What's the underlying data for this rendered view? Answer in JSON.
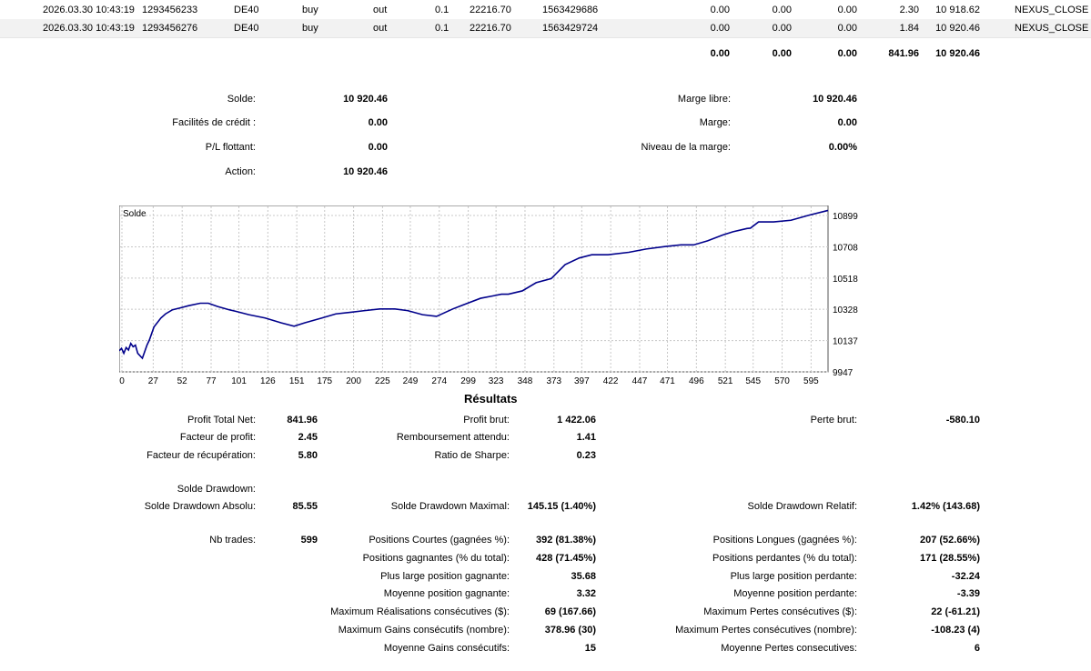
{
  "deals": [
    {
      "time": "2026.03.30 10:43:19",
      "order": "1293456233",
      "symbol": "DE40",
      "type": "buy",
      "direction": "out",
      "volume": "0.1",
      "price": "22216.70",
      "deal": "1563429686",
      "commission": "0.00",
      "fee": "0.00",
      "swap": "0.00",
      "profit": "2.30",
      "balance": "10 918.62",
      "comment": "NEXUS_CLOSE"
    },
    {
      "time": "2026.03.30 10:43:19",
      "order": "1293456276",
      "symbol": "DE40",
      "type": "buy",
      "direction": "out",
      "volume": "0.1",
      "price": "22216.70",
      "deal": "1563429724",
      "commission": "0.00",
      "fee": "0.00",
      "swap": "0.00",
      "profit": "1.84",
      "balance": "10 920.46",
      "comment": "NEXUS_CLOSE"
    }
  ],
  "totals": {
    "commission": "0.00",
    "fee": "0.00",
    "swap": "0.00",
    "profit": "841.96",
    "balance": "10 920.46"
  },
  "account": {
    "solde_label": "Solde:",
    "solde": "10 920.46",
    "credit_label": "Facilités de crédit :",
    "credit": "0.00",
    "pl_label": "P/L flottant:",
    "pl": "0.00",
    "action_label": "Action:",
    "action": "10 920.46",
    "marge_libre_label": "Marge libre:",
    "marge_libre": "10 920.46",
    "marge_label": "Marge:",
    "marge": "0.00",
    "niveau_label": "Niveau de la marge:",
    "niveau": "0.00%"
  },
  "chart_data": {
    "type": "line",
    "title": "Solde",
    "line_color": "#00008b",
    "x_ticks": [
      "0",
      "27",
      "52",
      "77",
      "101",
      "126",
      "151",
      "175",
      "200",
      "225",
      "249",
      "274",
      "299",
      "323",
      "348",
      "373",
      "397",
      "422",
      "447",
      "471",
      "496",
      "521",
      "545",
      "570",
      "595"
    ],
    "x_tick_values": [
      0,
      27,
      52,
      77,
      101,
      126,
      151,
      175,
      200,
      225,
      249,
      274,
      299,
      323,
      348,
      373,
      397,
      422,
      447,
      471,
      496,
      521,
      545,
      570,
      595
    ],
    "y_ticks": [
      "10899",
      "10708",
      "10518",
      "10328",
      "10137",
      "9947"
    ],
    "y_tick_values": [
      10899,
      10708,
      10518,
      10328,
      10137,
      9947
    ],
    "xlim": [
      0,
      612
    ],
    "ylim": [
      9947,
      10960
    ],
    "x": [
      0,
      2,
      4,
      6,
      8,
      10,
      12,
      14,
      16,
      20,
      24,
      26,
      30,
      36,
      40,
      46,
      52,
      60,
      70,
      77,
      85,
      95,
      101,
      112,
      126,
      140,
      151,
      160,
      175,
      187,
      200,
      212,
      225,
      238,
      249,
      262,
      274,
      288,
      299,
      312,
      323,
      330,
      336,
      348,
      360,
      373,
      385,
      397,
      408,
      422,
      440,
      455,
      471,
      485,
      496,
      508,
      521,
      530,
      542,
      545,
      552,
      565,
      580,
      595,
      612
    ],
    "y": [
      10075,
      10090,
      10060,
      10095,
      10080,
      10120,
      10100,
      10110,
      10060,
      10030,
      10110,
      10140,
      10220,
      10275,
      10300,
      10325,
      10335,
      10350,
      10365,
      10365,
      10345,
      10325,
      10315,
      10295,
      10275,
      10245,
      10225,
      10245,
      10275,
      10300,
      10310,
      10320,
      10330,
      10330,
      10320,
      10295,
      10285,
      10330,
      10360,
      10395,
      10410,
      10420,
      10420,
      10440,
      10490,
      10515,
      10600,
      10640,
      10660,
      10660,
      10675,
      10695,
      10710,
      10720,
      10720,
      10745,
      10780,
      10800,
      10820,
      10822,
      10860,
      10860,
      10870,
      10900,
      10930
    ]
  },
  "results": {
    "heading": "Résultats",
    "profit_total_label": "Profit Total Net:",
    "profit_total": "841.96",
    "profit_brut_label": "Profit brut:",
    "profit_brut": "1 422.06",
    "perte_brut_label": "Perte brut:",
    "perte_brut": "-580.10",
    "facteur_profit_label": "Facteur de profit:",
    "facteur_profit": "2.45",
    "remboursement_label": "Remboursement attendu:",
    "remboursement": "1.41",
    "facteur_recup_label": "Facteur de récupération:",
    "facteur_recup": "5.80",
    "sharpe_label": "Ratio de Sharpe:",
    "sharpe": "0.23",
    "solde_drawdown_label": "Solde Drawdown:",
    "dd_absolu_label": "Solde Drawdown Absolu:",
    "dd_absolu": "85.55",
    "dd_maximal_label": "Solde Drawdown Maximal:",
    "dd_maximal": "145.15 (1.40%)",
    "dd_relatif_label": "Solde Drawdown Relatif:",
    "dd_relatif": "1.42% (143.68)",
    "nb_trades_label": "Nb trades:",
    "nb_trades": "599",
    "courtes_label": "Positions Courtes (gagnées %):",
    "courtes": "392 (81.38%)",
    "longues_label": "Positions Longues (gagnées %):",
    "longues": "207 (52.66%)",
    "gagnantes_label": "Positions gagnantes (% du total):",
    "gagnantes": "428 (71.45%)",
    "perdantes_label": "Positions perdantes (% du total):",
    "perdantes": "171 (28.55%)",
    "plus_large_gagnante_label": "Plus large position gagnante:",
    "plus_large_gagnante": "35.68",
    "plus_large_perdante_label": "Plus large position perdante:",
    "plus_large_perdante": "-32.24",
    "moyenne_gagnante_label": "Moyenne position gagnante:",
    "moyenne_gagnante": "3.32",
    "moyenne_perdante_label": "Moyenne position perdante:",
    "moyenne_perdante": "-3.39",
    "max_realisations_label": "Maximum Réalisations consécutives ($):",
    "max_realisations": "69 (167.66)",
    "max_pertes_label": "Maximum Pertes consécutives ($):",
    "max_pertes": "22 (-61.21)",
    "max_gains_nombre_label": "Maximum Gains consécutifs (nombre):",
    "max_gains_nombre": "378.96 (30)",
    "max_pertes_nombre_label": "Maximum Pertes consécutives (nombre):",
    "max_pertes_nombre": "-108.23 (4)",
    "moyenne_gains_label": "Moyenne Gains consécutifs:",
    "moyenne_gains": "15",
    "moyenne_pertes_label": "Moyenne Pertes consecutives:",
    "moyenne_pertes": "6"
  }
}
